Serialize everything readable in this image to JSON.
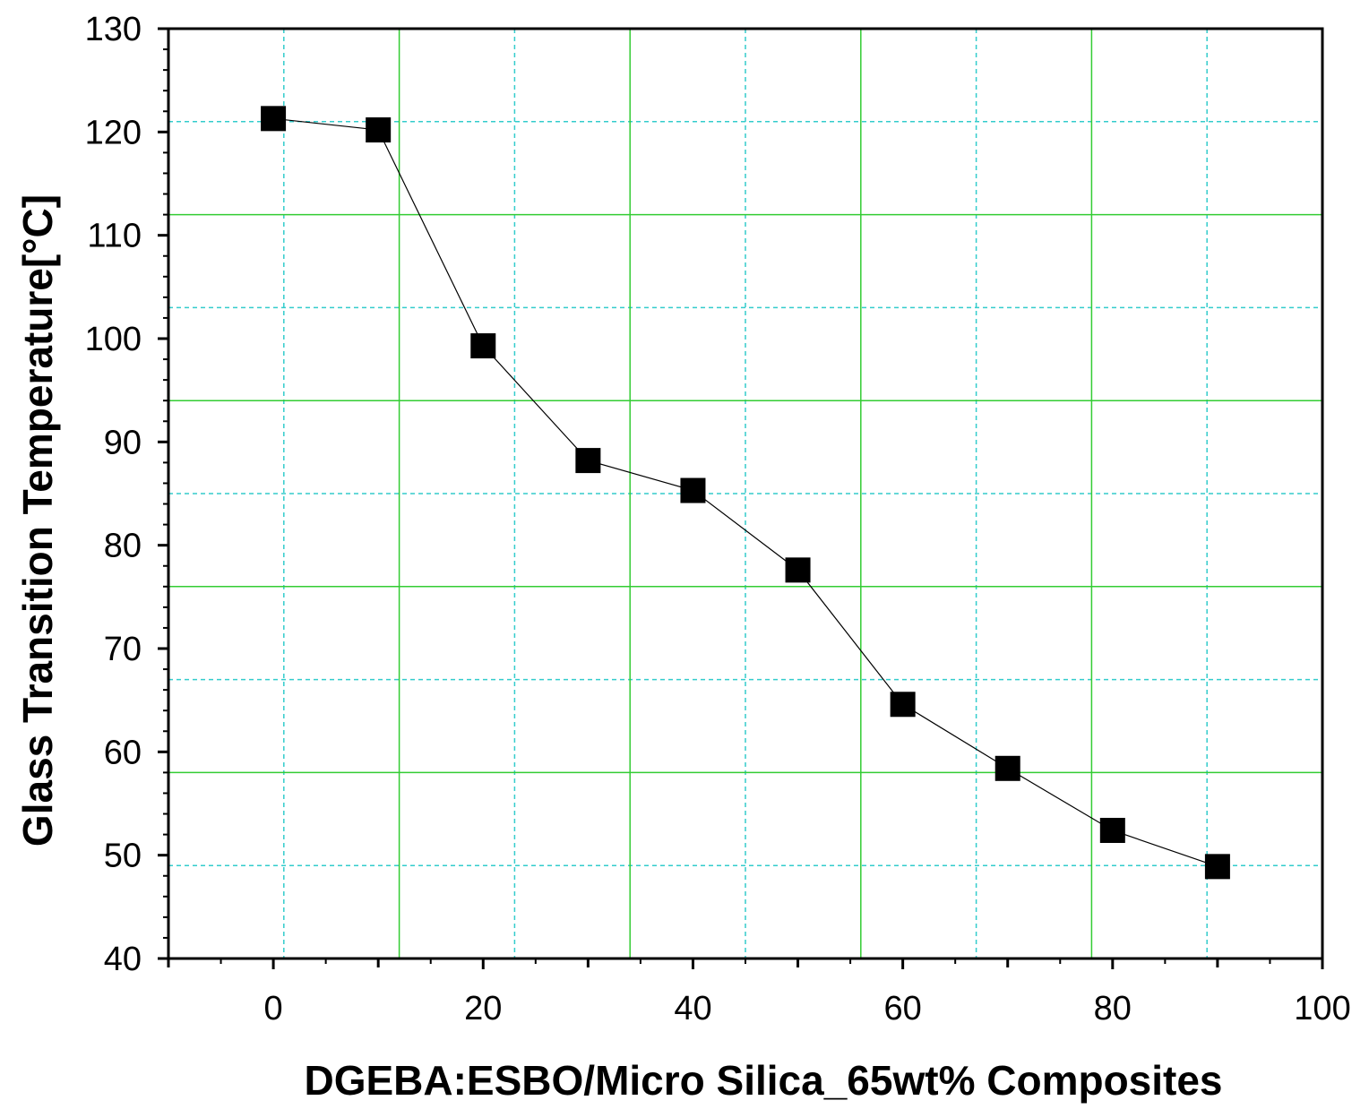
{
  "chart_data": {
    "type": "line",
    "title": "",
    "xlabel": "DGEBA:ESBO/Micro Silica_65wt% Composites",
    "ylabel": "Glass Transition Temperature[°C]",
    "xlim": [
      -10,
      100
    ],
    "ylim": [
      40,
      130
    ],
    "x_ticks": [
      0,
      20,
      40,
      60,
      80,
      100
    ],
    "x_tick_labels": [
      "0",
      "20",
      "40",
      "60",
      "80",
      "100"
    ],
    "y_ticks": [
      40,
      50,
      60,
      70,
      80,
      90,
      100,
      110,
      120,
      130
    ],
    "y_tick_labels": [
      "40",
      "50",
      "60",
      "70",
      "80",
      "90",
      "100",
      "110",
      "120",
      "130"
    ],
    "grid": "on",
    "legend": "none",
    "series": [
      {
        "x": [
          0,
          10,
          20,
          30,
          40,
          50,
          60,
          70,
          80,
          90
        ],
        "y": [
          121.3,
          120.2,
          99.3,
          88.2,
          85.3,
          77.6,
          64.6,
          58.4,
          52.4,
          48.9
        ],
        "marker": "square",
        "color": "#000000"
      }
    ],
    "colors": {
      "major_grid": "#33cc33",
      "minor_grid": "#33cccc",
      "line": "#000000",
      "marker": "#000000"
    }
  }
}
